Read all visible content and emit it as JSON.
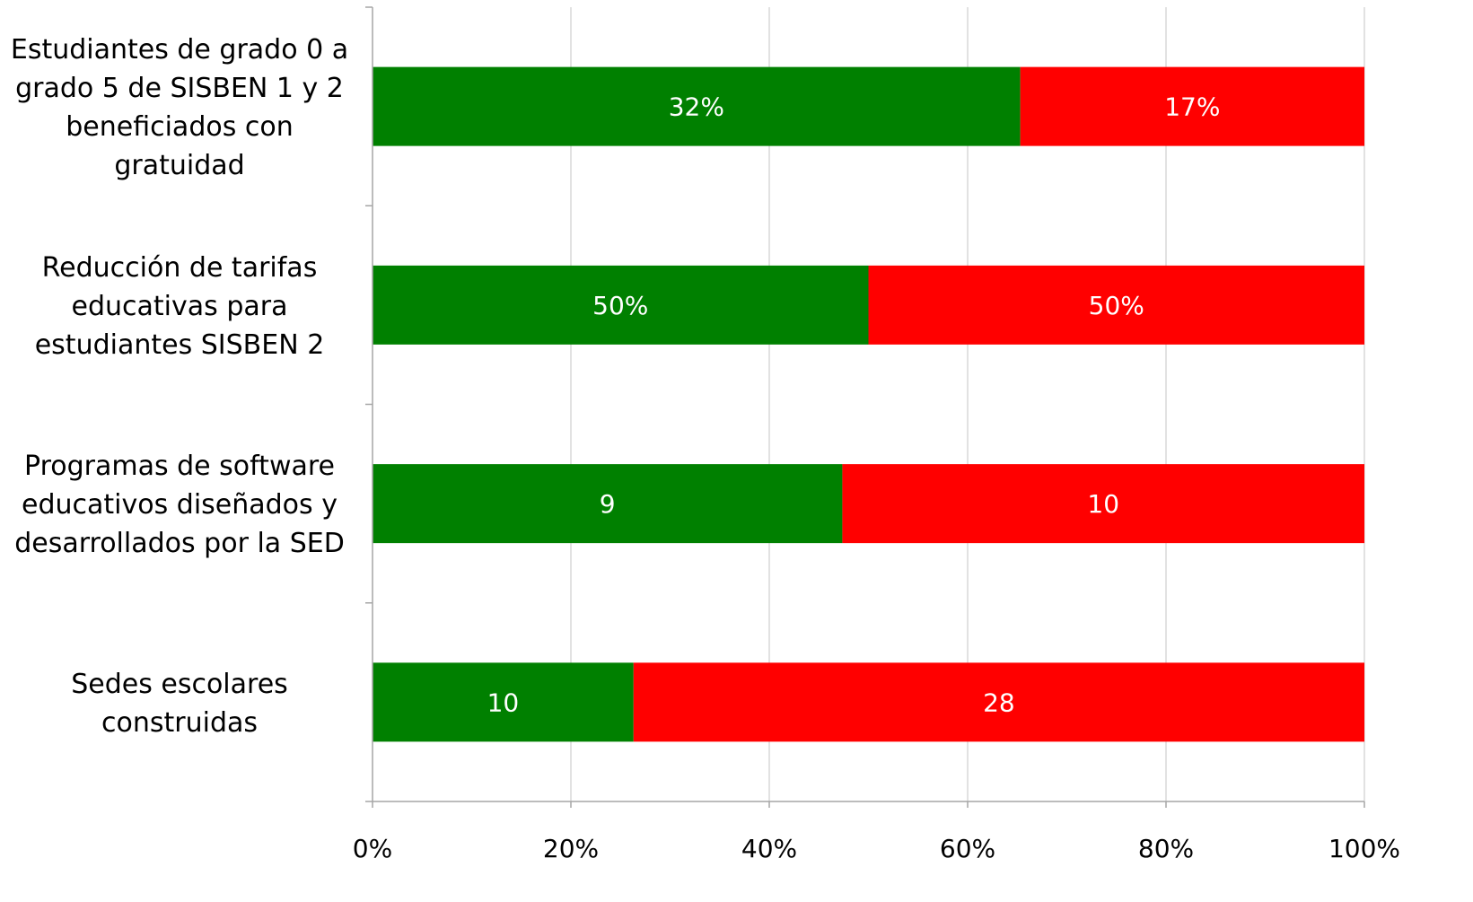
{
  "chart_data": {
    "type": "bar",
    "orientation": "horizontal",
    "stacking": "percent",
    "categories": [
      [
        "Estudiantes de grado 0 a",
        "grado 5 de SISBEN 1 y 2",
        "beneficiados con",
        "gratuidad"
      ],
      [
        "Reducción de tarifas",
        "educativas para",
        "estudiantes SISBEN 2"
      ],
      [
        "Programas de software",
        "educativos diseñados y",
        "desarrollados por la SED"
      ],
      [
        "Sedes escolares",
        "construidas"
      ]
    ],
    "series": [
      {
        "color": "#008000",
        "values": [
          32,
          50,
          9,
          10
        ],
        "labels": [
          "32%",
          "50%",
          "9",
          "10"
        ]
      },
      {
        "color": "#ff0000",
        "values": [
          17,
          50,
          10,
          28
        ],
        "labels": [
          "17%",
          "50%",
          "10",
          "28"
        ]
      }
    ],
    "xlim": [
      0,
      100
    ],
    "x_ticks": [
      "0%",
      "20%",
      "40%",
      "60%",
      "80%",
      "100%"
    ],
    "grid": true,
    "legend": "none"
  }
}
